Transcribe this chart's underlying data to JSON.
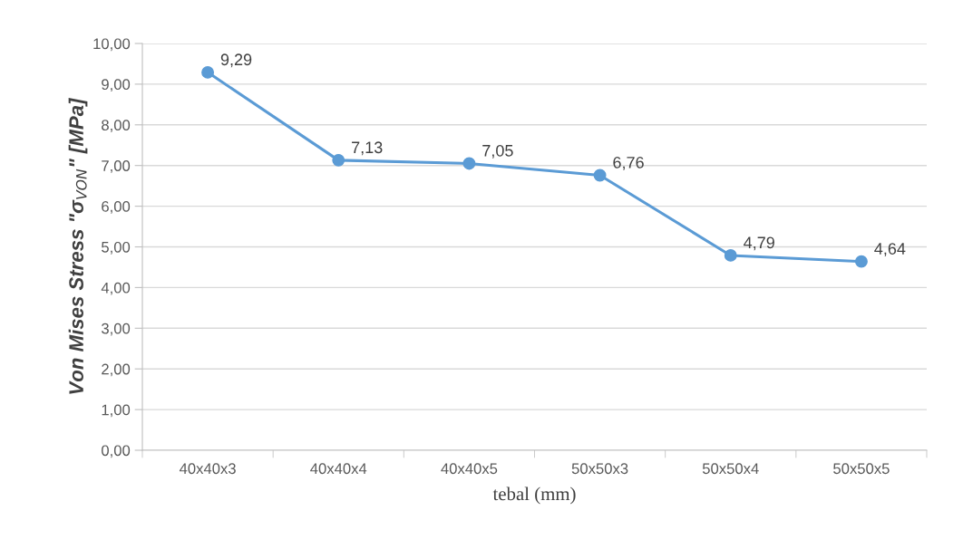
{
  "chart_data": {
    "type": "line",
    "xlabel": "tebal (mm)",
    "ylabel": "Von Mises Stress \"σ$_{VON}$\" [MPa]",
    "categories": [
      "40x40x3",
      "40x40x4",
      "40x40x5",
      "50x50x3",
      "50x50x4",
      "50x50x5"
    ],
    "series": [
      {
        "color": "#5b9bd5",
        "values": [
          9.29,
          7.13,
          7.05,
          6.76,
          4.79,
          4.64
        ],
        "value_labels": [
          "9,29",
          "7,13",
          "7,05",
          "6,76",
          "4,79",
          "4,64"
        ]
      }
    ],
    "ylim": [
      0,
      10
    ],
    "yticks": [
      {
        "value": 0,
        "label": "0,00"
      },
      {
        "value": 1,
        "label": "1,00"
      },
      {
        "value": 2,
        "label": "2,00"
      },
      {
        "value": 3,
        "label": "3,00"
      },
      {
        "value": 4,
        "label": "4,00"
      },
      {
        "value": 5,
        "label": "5,00"
      },
      {
        "value": 6,
        "label": "6,00"
      },
      {
        "value": 7,
        "label": "7,00"
      },
      {
        "value": 8,
        "label": "8,00"
      },
      {
        "value": 9,
        "label": "9,00"
      },
      {
        "value": 10,
        "label": "10,00"
      }
    ],
    "grid": "y",
    "marker": "circle",
    "line_style": "solid"
  }
}
